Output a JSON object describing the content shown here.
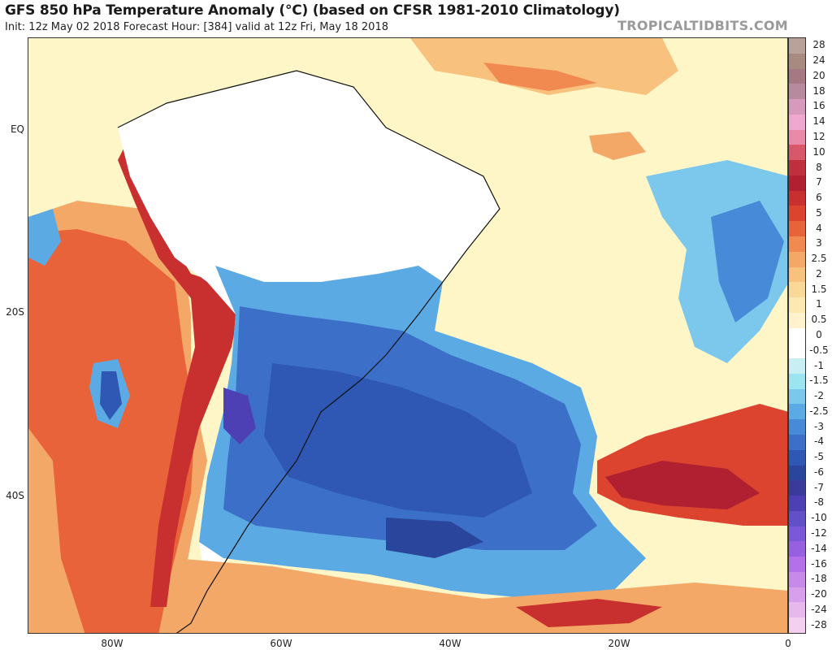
{
  "header": {
    "title": "GFS 850 hPa Temperature Anomaly (°C) (based on CFSR 1981-2010 Climatology)",
    "subtitle": "Init: 12z May 02 2018   Forecast Hour: [384]   valid at 12z Fri, May 18 2018",
    "site": "TROPICALTIDBITS.COM"
  },
  "map": {
    "lat_labels": [
      "EQ",
      "20S",
      "40S"
    ],
    "lon_labels": [
      "80W",
      "60W",
      "40W",
      "20W",
      "0"
    ]
  },
  "colorbar": {
    "labels": [
      "28",
      "24",
      "20",
      "18",
      "16",
      "14",
      "12",
      "10",
      "8",
      "7",
      "6",
      "5",
      "4",
      "3",
      "2.5",
      "2",
      "1.5",
      "1",
      "0.5",
      "0",
      "-0.5",
      "-1",
      "-1.5",
      "-2",
      "-2.5",
      "-3",
      "-4",
      "-5",
      "-6",
      "-7",
      "-8",
      "-10",
      "-12",
      "-14",
      "-16",
      "-18",
      "-20",
      "-24",
      "-28"
    ],
    "colors": [
      "#b8a29a",
      "#a88a80",
      "#a67884",
      "#b88a9e",
      "#d89abc",
      "#f0a8d0",
      "#e88aa8",
      "#d8586a",
      "#c0303c",
      "#b02030",
      "#c83030",
      "#dc4430",
      "#e8623a",
      "#f08a50",
      "#f4a868",
      "#f8c27e",
      "#fad898",
      "#fce8b0",
      "#fff2cc",
      "#ffffff",
      "#ffffff",
      "#c8f0f4",
      "#9ce4f0",
      "#7cc8ec",
      "#5caae4",
      "#468ad8",
      "#3c70c8",
      "#2e58b4",
      "#2a469c",
      "#3a3a9a",
      "#4c40b4",
      "#6250c8",
      "#7a58d8",
      "#9660e0",
      "#b470e8",
      "#c88ae8",
      "#d8a0ec",
      "#e8b8ec",
      "#f4d0f0"
    ]
  }
}
